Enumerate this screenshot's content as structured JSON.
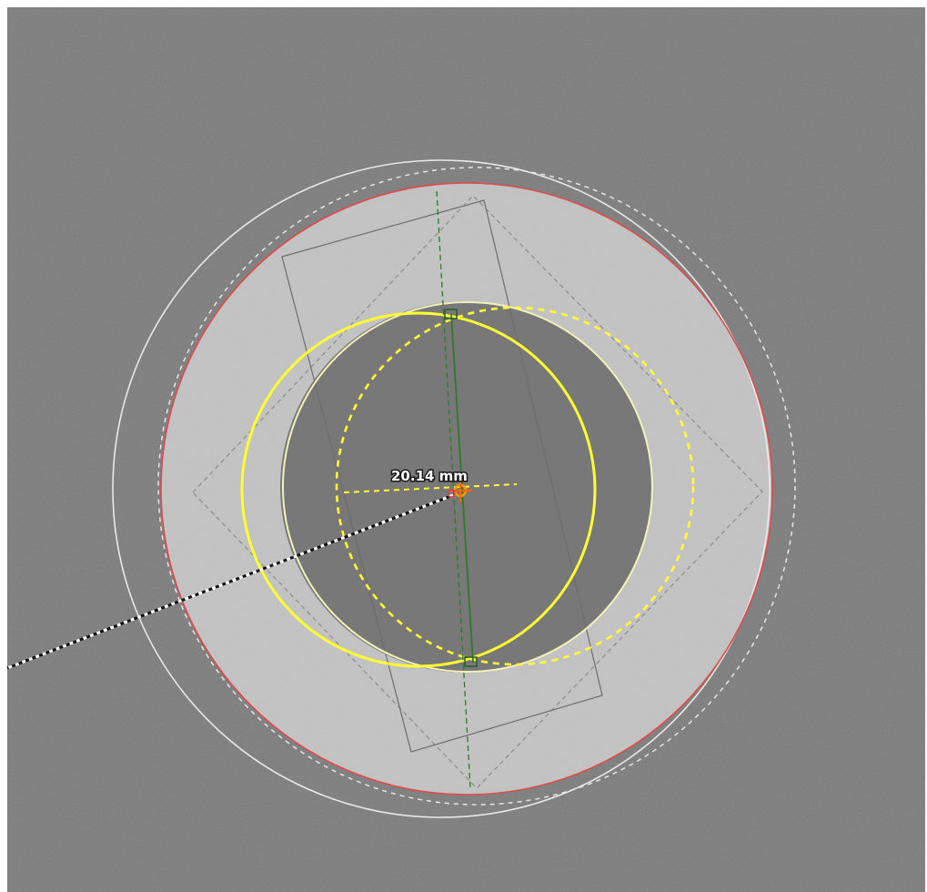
{
  "measurement": {
    "label": "20.14 mm"
  },
  "colors": {
    "background": "#7a7a7a",
    "prosthesis_fill": "#c3c3c3",
    "bone_hole": "#787878",
    "outer_outline": "#e8e8e8",
    "outer_dashed": "#e6e6e6",
    "red_outline": "#e04a4a",
    "yellow": "#ffff33",
    "pale_yellow": "#f2f2b8",
    "green_axis": "#2d7a2d",
    "square_outline": "#6e6e6e"
  },
  "overlay_items": [
    {
      "name": "white-reference-circle",
      "style": "solid"
    },
    {
      "name": "white-reference-circle-dashed",
      "style": "dashed"
    },
    {
      "name": "red-outer-circle",
      "style": "solid"
    },
    {
      "name": "yellow-circle",
      "style": "solid"
    },
    {
      "name": "yellow-circle-dashed",
      "style": "dashed"
    },
    {
      "name": "green-axis-line",
      "style": "dashed"
    },
    {
      "name": "center-crosshair",
      "icon": "crosshair-icon"
    },
    {
      "name": "measurement-line",
      "style": "dotted"
    }
  ]
}
